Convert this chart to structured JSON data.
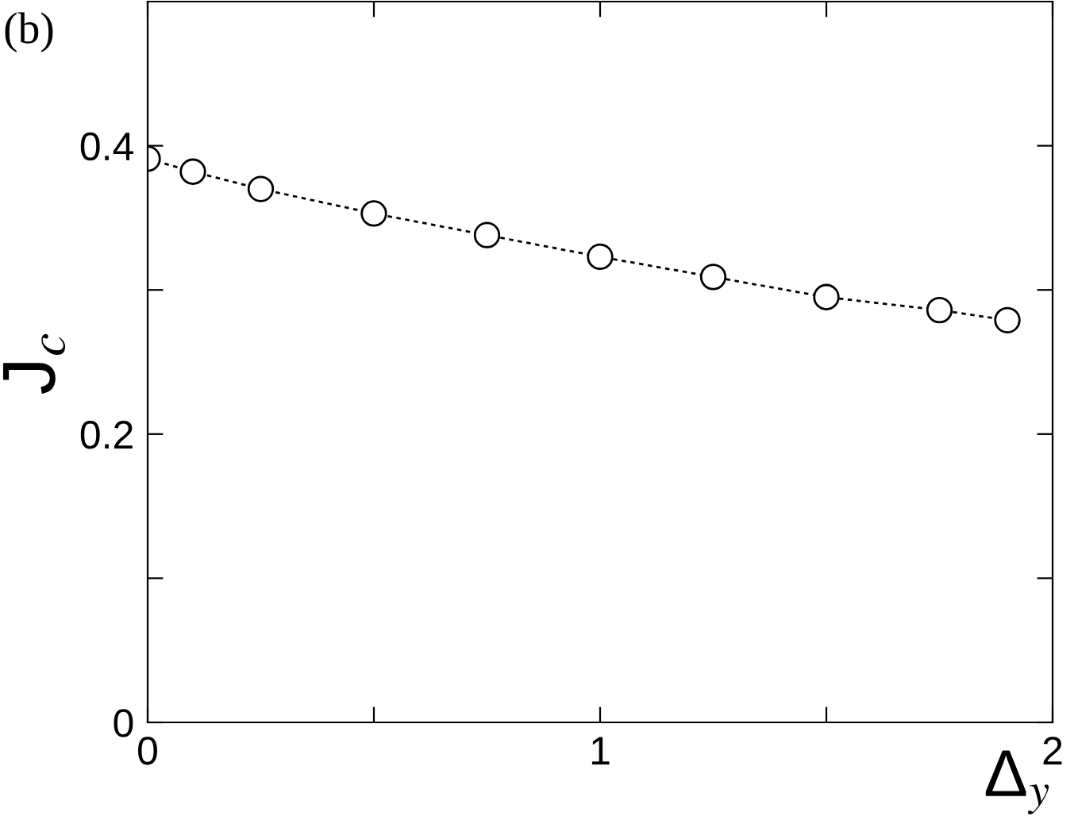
{
  "chart_data": {
    "type": "line",
    "xlabel": "Δ$_{y}$",
    "ylabel": "J$_{c}$",
    "annotations": [
      "(b)"
    ],
    "x": [
      0,
      0.1,
      0.25,
      0.5,
      0.75,
      1.0,
      1.25,
      1.5,
      1.75,
      1.9
    ],
    "series": [
      {
        "color": "#000000",
        "values": [
          0.391,
          0.382,
          0.37,
          0.353,
          0.338,
          0.323,
          0.309,
          0.295,
          0.286,
          0.279
        ]
      }
    ],
    "xlim": [
      0,
      2
    ],
    "ylim": [
      0,
      0.5
    ],
    "xticks": [
      0,
      {
        "value": 0.5,
        "label": null
      },
      1,
      {
        "value": 1.5,
        "label": null
      },
      2
    ],
    "yticks": [
      0,
      {
        "value": 0.1,
        "label": null
      },
      0.2,
      {
        "value": 0.3,
        "label": null
      },
      0.4
    ],
    "marker": "circle",
    "line_style": "dotted",
    "grid": false,
    "legend": false
  }
}
